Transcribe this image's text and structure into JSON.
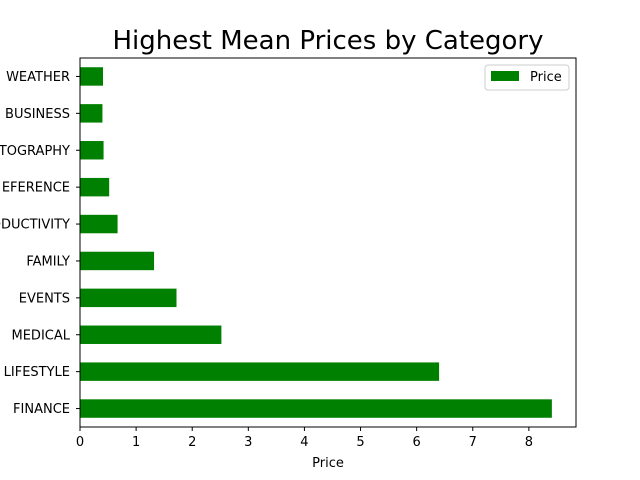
{
  "chart_data": {
    "type": "bar",
    "orientation": "horizontal",
    "title": "Highest Mean Prices by Category",
    "xlabel": "Price",
    "ylabel": "",
    "xlim": [
      0,
      8.84
    ],
    "xticks": [
      0,
      1,
      2,
      3,
      4,
      5,
      6,
      7,
      8
    ],
    "categories": [
      "FINANCE",
      "LIFESTYLE",
      "MEDICAL",
      "EVENTS",
      "FAMILY",
      "PRODUCTIVITY",
      "BOOKS_AND_REFERENCE",
      "PHOTOGRAPHY",
      "BUSINESS",
      "WEATHER"
    ],
    "category_display": [
      "FINANCE",
      "LIFESTYLE",
      "MEDICAL",
      "EVENTS",
      "FAMILY",
      "ODUCTIVITY",
      "EFERENCE",
      "TOGRAPHY",
      "BUSINESS",
      "WEATHER"
    ],
    "series": [
      {
        "name": "Price",
        "color": "#008000",
        "values": [
          8.41,
          6.4,
          2.52,
          1.72,
          1.32,
          0.67,
          0.52,
          0.42,
          0.4,
          0.41
        ]
      }
    ],
    "legend": {
      "position": "top-right",
      "entries": [
        "Price"
      ]
    },
    "grid": false
  }
}
